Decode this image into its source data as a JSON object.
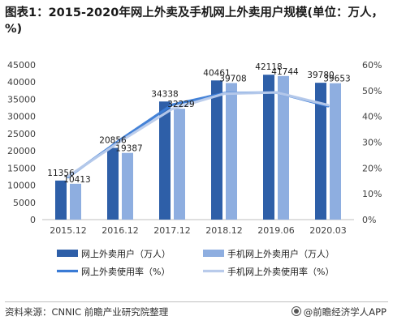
{
  "title": "图表1：2015-2020年网上外卖及手机网上外卖用户规模(单位：万人，%)",
  "source": "资料来源：CNNIC 前瞻产业研究院整理",
  "brand": "@前瞻经济学人APP",
  "colors": {
    "bar_dark": "#2e5fa8",
    "bar_light": "#8eaee0",
    "line_dark": "#3a7bd5",
    "line_light": "#b9cbeb"
  },
  "chart_data": {
    "type": "bar",
    "categories": [
      "2015.12",
      "2016.12",
      "2017.12",
      "2018.12",
      "2019.06",
      "2020.03"
    ],
    "series": [
      {
        "name": "网上外卖用户（万人）",
        "type": "bar",
        "axis": "left",
        "values": [
          11356,
          20856,
          34338,
          40461,
          42118,
          39780
        ]
      },
      {
        "name": "手机网上外卖用户（万人）",
        "type": "bar",
        "axis": "left",
        "values": [
          10413,
          19387,
          32229,
          39708,
          41744,
          39653
        ]
      },
      {
        "name": "网上外卖使用率（%）",
        "type": "line",
        "axis": "right",
        "values": [
          16.5,
          30.9,
          44.5,
          49.0,
          49.3,
          44.0
        ]
      },
      {
        "name": "手机网上外卖使用率（%）",
        "type": "line",
        "axis": "right",
        "values": [
          16.8,
          30.3,
          42.9,
          48.8,
          49.3,
          44.4
        ]
      }
    ],
    "ylim_left": [
      0,
      45000
    ],
    "yticks_left": [
      "0",
      "5000",
      "10000",
      "15000",
      "20000",
      "25000",
      "30000",
      "35000",
      "40000",
      "45000"
    ],
    "ylim_right": [
      0,
      60
    ],
    "yticks_right": [
      "0%",
      "10%",
      "20%",
      "30%",
      "40%",
      "50%",
      "60%"
    ],
    "grid": false,
    "legend": "bottom"
  }
}
